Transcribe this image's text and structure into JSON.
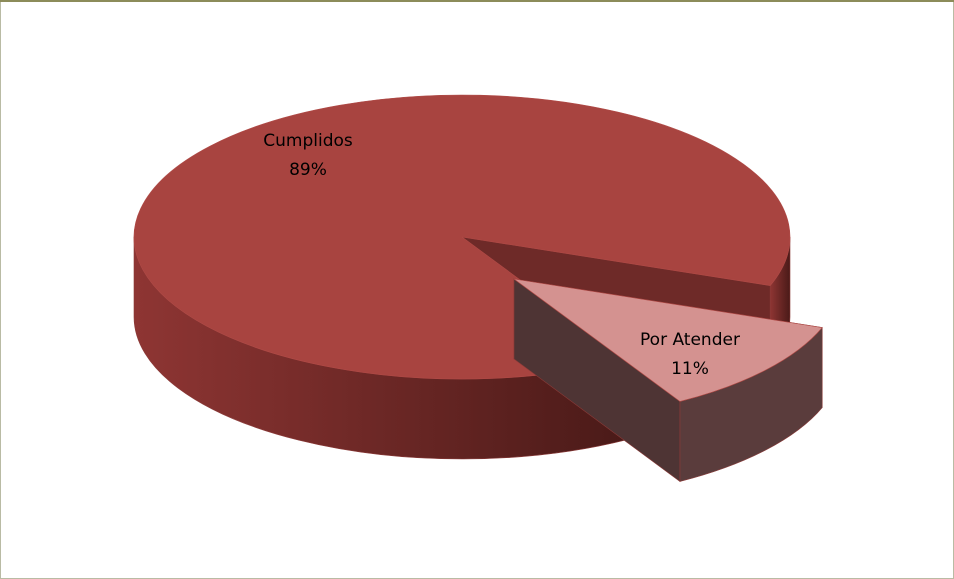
{
  "chart_data": {
    "type": "pie",
    "categories": [
      "Cumplidos",
      "Por Atender"
    ],
    "values": [
      89,
      11
    ],
    "value_labels": [
      "89%",
      "11%"
    ],
    "colors": [
      "#a84440",
      "#d49290"
    ]
  }
}
